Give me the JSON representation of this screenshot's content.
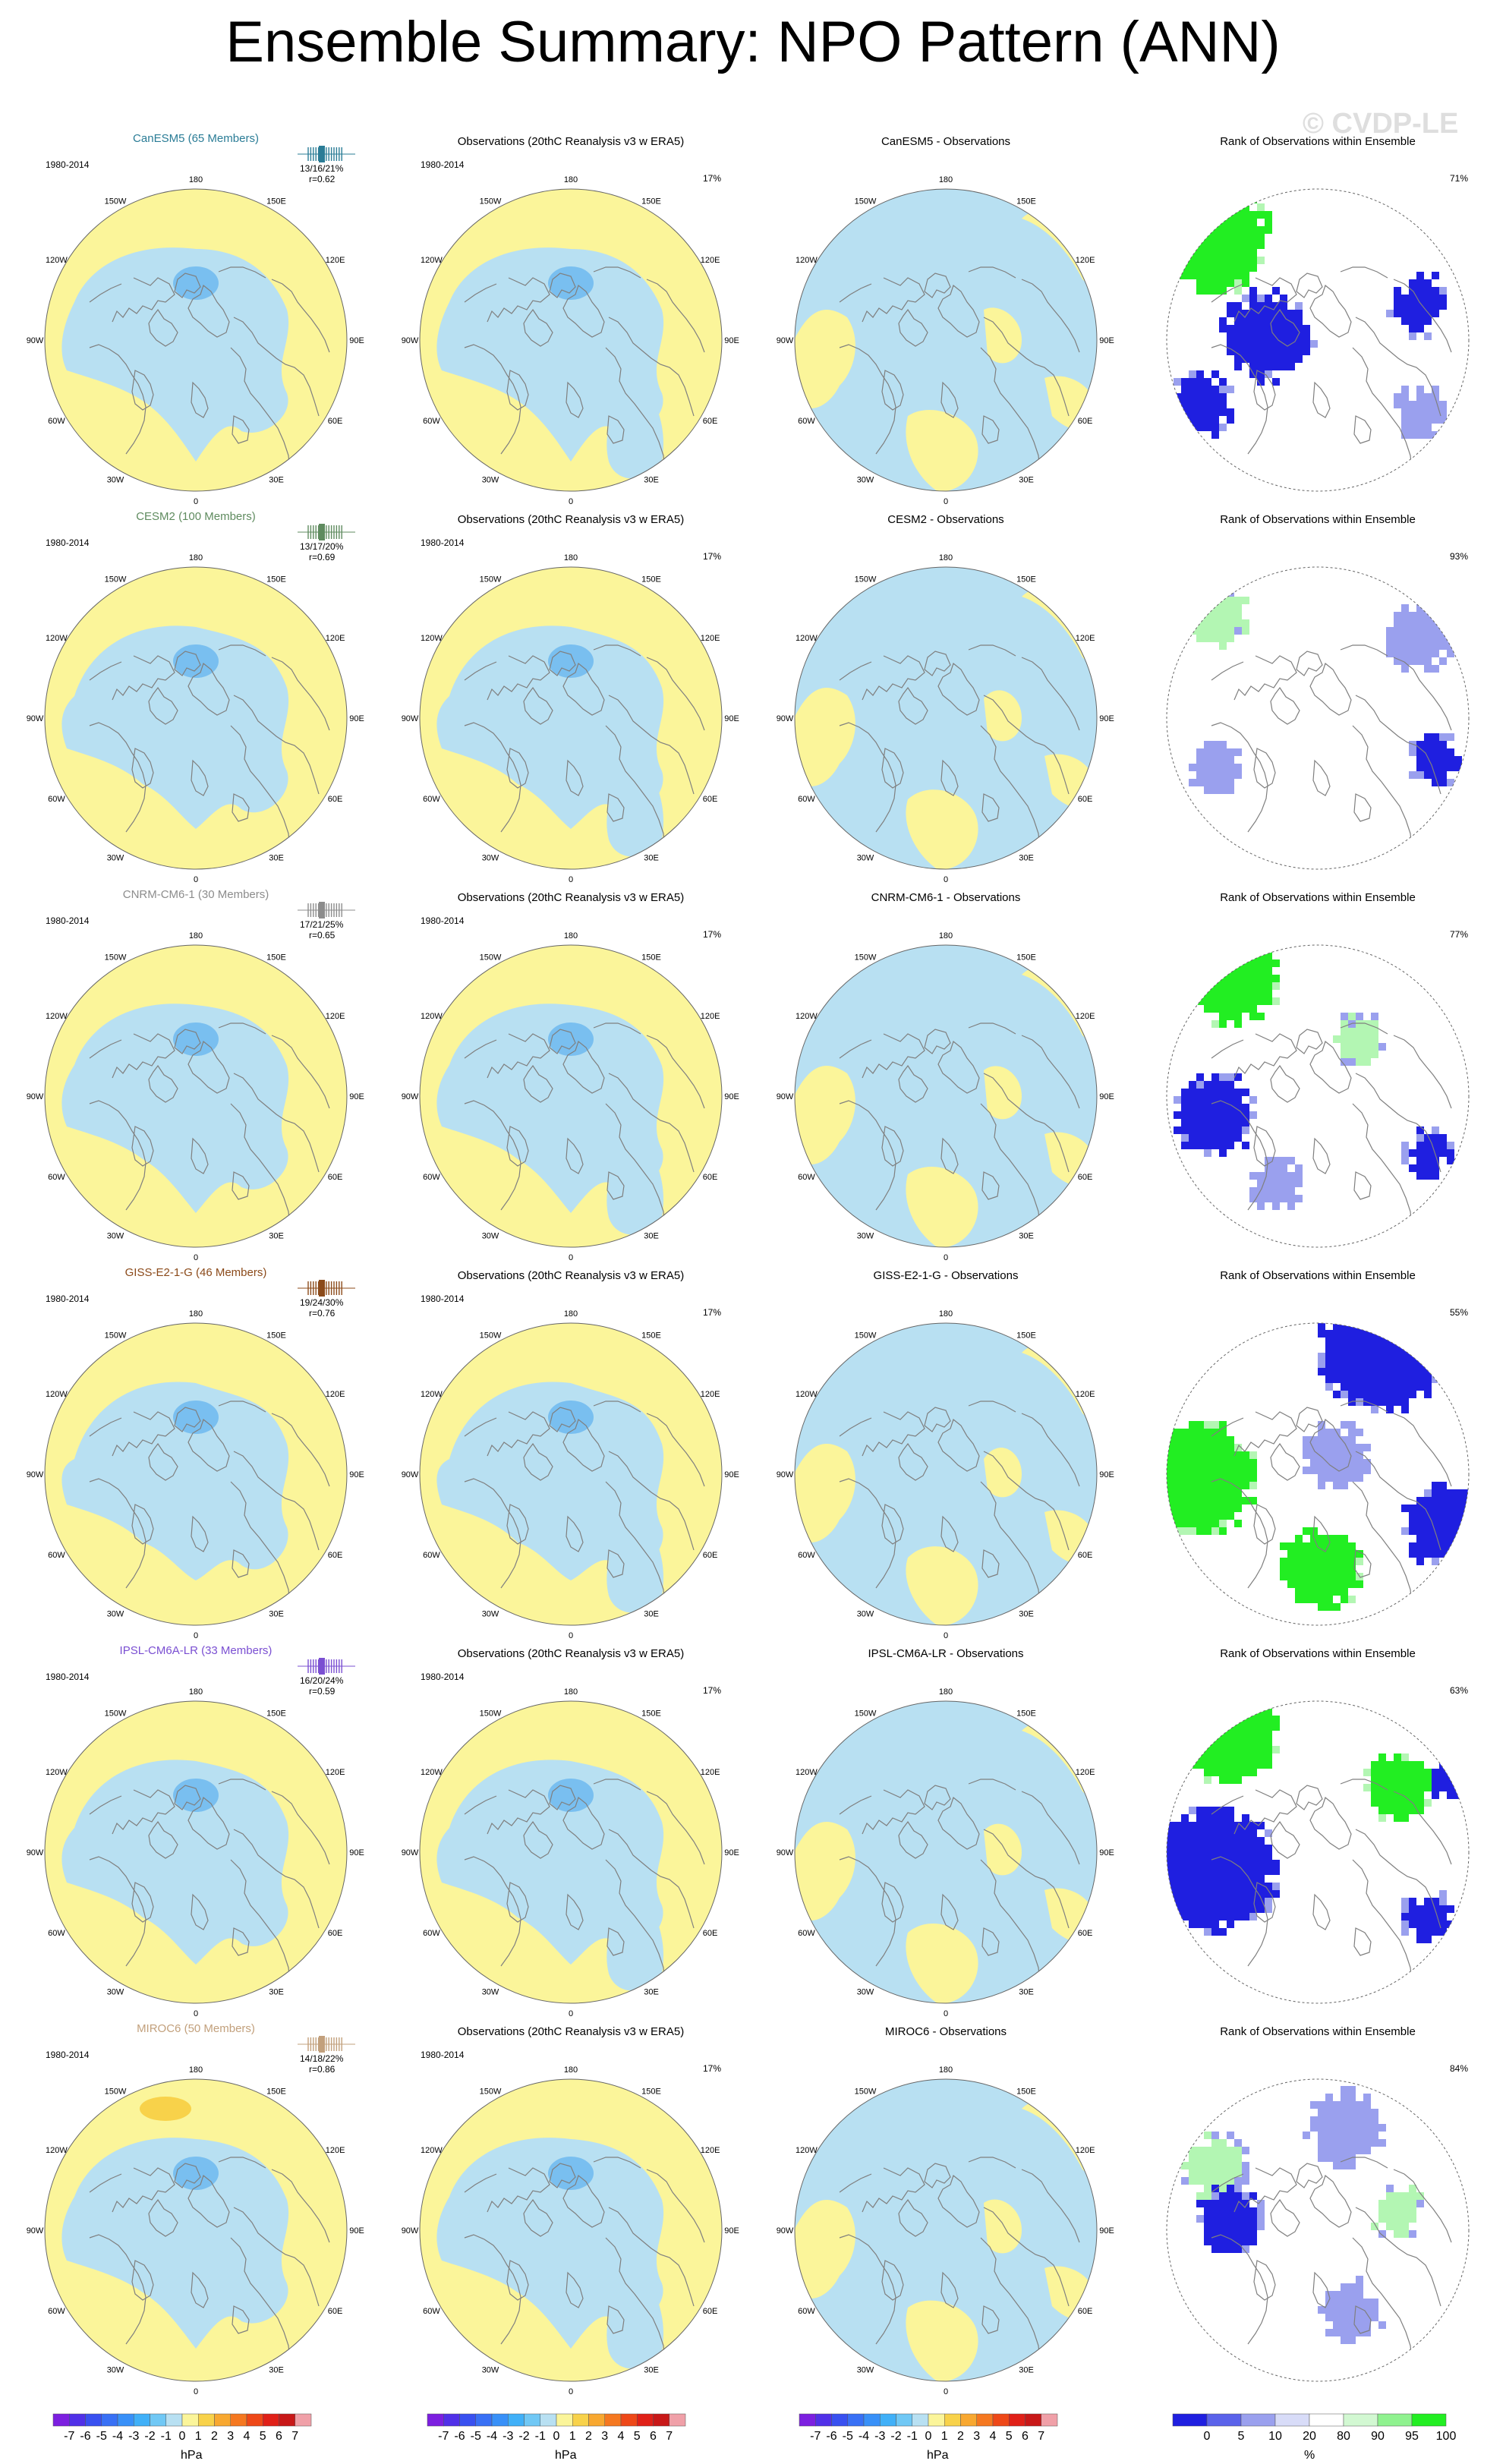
{
  "title": "Ensemble Summary: NPO Pattern (ANN)",
  "watermark": "© CVDP-LE",
  "period": "1980-2014",
  "obs_title": "Observations (20thC Reanalysis v3 w ERA5)",
  "rank_title": "Rank of Observations within Ensemble",
  "lon_labels": [
    "180",
    "150E",
    "120E",
    "90E",
    "60E",
    "30E",
    "0",
    "30W",
    "60W",
    "90W",
    "120W",
    "150W"
  ],
  "colors": {
    "positive": "#fbf59a",
    "negative": "#b8e0f2",
    "neg_strong": "#79bff0",
    "pos_strong": "#f8d24a",
    "coast": "#7f7f7f",
    "rank_low": "#1f1fe0",
    "rank_mid": "#9aa0ee",
    "rank_high": "#22ee22",
    "rank_hi_light": "#b3f6b3"
  },
  "rows": [
    {
      "model": "CanESM5 (65 Members)",
      "model_color": "#2a7c96",
      "stats": "13/16/21%",
      "r": "r=0.62",
      "obs_pct": "17%",
      "diff_title": "CanESM5 - Observations",
      "rank_pct": "71%"
    },
    {
      "model": "CESM2 (100 Members)",
      "model_color": "#5f8b5f",
      "stats": "13/17/20%",
      "r": "r=0.69",
      "obs_pct": "17%",
      "diff_title": "CESM2 - Observations",
      "rank_pct": "93%"
    },
    {
      "model": "CNRM-CM6-1 (30 Members)",
      "model_color": "#8c8c8c",
      "stats": "17/21/25%",
      "r": "r=0.65",
      "obs_pct": "17%",
      "diff_title": "CNRM-CM6-1 - Observations",
      "rank_pct": "77%"
    },
    {
      "model": "GISS-E2-1-G (46 Members)",
      "model_color": "#8b4a1a",
      "stats": "19/24/30%",
      "r": "r=0.76",
      "obs_pct": "17%",
      "diff_title": "GISS-E2-1-G - Observations",
      "rank_pct": "55%"
    },
    {
      "model": "IPSL-CM6A-LR (33 Members)",
      "model_color": "#7a4fd2",
      "stats": "16/20/24%",
      "r": "r=0.59",
      "obs_pct": "17%",
      "diff_title": "IPSL-CM6A-LR - Observations",
      "rank_pct": "63%"
    },
    {
      "model": "MIROC6 (50 Members)",
      "model_color": "#c2a07c",
      "stats": "14/18/22%",
      "r": "r=0.86",
      "obs_pct": "17%",
      "diff_title": "MIROC6 - Observations",
      "rank_pct": "84%"
    }
  ],
  "colorbar_hpa": {
    "labels": [
      "-7",
      "-6",
      "-5",
      "-4",
      "-3",
      "-2",
      "-1",
      "0",
      "1",
      "2",
      "3",
      "4",
      "5",
      "6",
      "7"
    ],
    "colors": [
      "#7c1fe0",
      "#5030e8",
      "#3850f0",
      "#3870f5",
      "#3890f8",
      "#40b0f8",
      "#70c8f5",
      "#b8e0f2",
      "#fbf59a",
      "#f8d24a",
      "#f8a830",
      "#f57820",
      "#ee4818",
      "#e02018",
      "#c81818",
      "#f0a0a8"
    ],
    "unit": "hPa"
  },
  "colorbar_rank": {
    "labels": [
      "0",
      "5",
      "10",
      "20",
      "80",
      "90",
      "95",
      "100"
    ],
    "colors": [
      "#1f1fe0",
      "#5a62ea",
      "#9aa0ee",
      "#d8dcf8",
      "#ffffff",
      "#d2f8d2",
      "#8ff28f",
      "#22ee22"
    ],
    "unit": "%"
  }
}
